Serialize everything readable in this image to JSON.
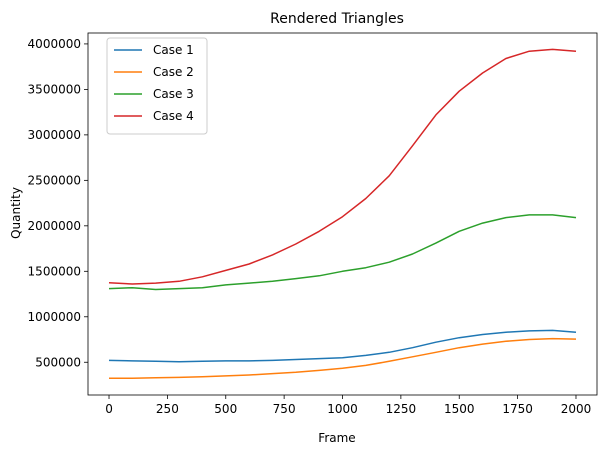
{
  "chart_data": {
    "type": "line",
    "title": "Rendered Triangles",
    "xlabel": "Frame",
    "ylabel": "Quantity",
    "xlim": [
      -90,
      2090
    ],
    "ylim": [
      140000,
      4120000
    ],
    "x_ticks": [
      0,
      250,
      500,
      750,
      1000,
      1250,
      1500,
      1750,
      2000
    ],
    "x_tick_labels": [
      "0",
      "250",
      "500",
      "750",
      "1000",
      "1250",
      "1500",
      "1750",
      "2000"
    ],
    "y_ticks": [
      500000,
      1000000,
      1500000,
      2000000,
      2500000,
      3000000,
      3500000,
      4000000
    ],
    "y_tick_labels": [
      "500000",
      "1000000",
      "1500000",
      "2000000",
      "2500000",
      "3000000",
      "3500000",
      "4000000"
    ],
    "grid": false,
    "legend_position": "top-left",
    "x": [
      0,
      100,
      200,
      300,
      400,
      500,
      600,
      700,
      800,
      900,
      1000,
      1100,
      1200,
      1300,
      1400,
      1500,
      1600,
      1700,
      1800,
      1900,
      2000
    ],
    "series": [
      {
        "name": "Case 1",
        "color": "#1f77b4",
        "values": [
          520000,
          515000,
          510000,
          505000,
          510000,
          515000,
          515000,
          520000,
          530000,
          540000,
          550000,
          575000,
          610000,
          660000,
          720000,
          770000,
          805000,
          830000,
          845000,
          850000,
          830000
        ]
      },
      {
        "name": "Case 2",
        "color": "#ff7f0e",
        "values": [
          325000,
          325000,
          330000,
          333000,
          340000,
          350000,
          360000,
          375000,
          390000,
          410000,
          435000,
          465000,
          510000,
          560000,
          610000,
          660000,
          700000,
          730000,
          750000,
          760000,
          755000
        ]
      },
      {
        "name": "Case 3",
        "color": "#2ca02c",
        "values": [
          1310000,
          1320000,
          1300000,
          1310000,
          1320000,
          1350000,
          1370000,
          1390000,
          1420000,
          1450000,
          1500000,
          1540000,
          1600000,
          1690000,
          1810000,
          1940000,
          2030000,
          2090000,
          2120000,
          2120000,
          2090000
        ]
      },
      {
        "name": "Case 4",
        "color": "#d62728",
        "values": [
          1375000,
          1360000,
          1370000,
          1390000,
          1440000,
          1510000,
          1580000,
          1680000,
          1800000,
          1940000,
          2100000,
          2300000,
          2550000,
          2880000,
          3220000,
          3480000,
          3680000,
          3840000,
          3920000,
          3940000,
          3920000
        ]
      }
    ]
  }
}
